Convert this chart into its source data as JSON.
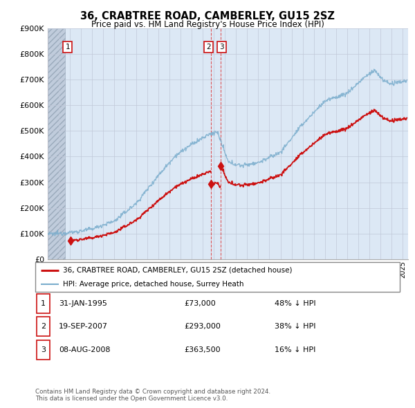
{
  "title": "36, CRABTREE ROAD, CAMBERLEY, GU15 2SZ",
  "subtitle": "Price paid vs. HM Land Registry's House Price Index (HPI)",
  "legend_line1": "36, CRABTREE ROAD, CAMBERLEY, GU15 2SZ (detached house)",
  "legend_line2": "HPI: Average price, detached house, Surrey Heath",
  "footer": "Contains HM Land Registry data © Crown copyright and database right 2024.\nThis data is licensed under the Open Government Licence v3.0.",
  "transactions": [
    {
      "num": 1,
      "date": "31-JAN-1995",
      "price": 73000,
      "price_str": "£73,000",
      "pct": "48% ↓ HPI",
      "year": 1995.08
    },
    {
      "num": 2,
      "date": "19-SEP-2007",
      "price": 293000,
      "price_str": "£293,000",
      "pct": "38% ↓ HPI",
      "year": 2007.72
    },
    {
      "num": 3,
      "date": "08-AUG-2008",
      "price": 363500,
      "price_str": "£363,500",
      "pct": "16% ↓ HPI",
      "year": 2008.6
    }
  ],
  "vlines": [
    2007.72,
    2008.6
  ],
  "ylim": [
    0,
    900000
  ],
  "xlim": [
    1993.0,
    2025.5
  ],
  "hpi_color": "#7aadcc",
  "price_color": "#cc1111",
  "bg_plot": "#dce8f5",
  "hatch_color": "#c0ccdc",
  "grid_color": "#c0c8d8",
  "hatch_end_year": 1994.58,
  "ytick_values": [
    0,
    100000,
    200000,
    300000,
    400000,
    500000,
    600000,
    700000,
    800000,
    900000
  ],
  "ytick_labels": [
    "£0",
    "£100K",
    "£200K",
    "£300K",
    "£400K",
    "£500K",
    "£600K",
    "£700K",
    "£800K",
    "£900K"
  ]
}
